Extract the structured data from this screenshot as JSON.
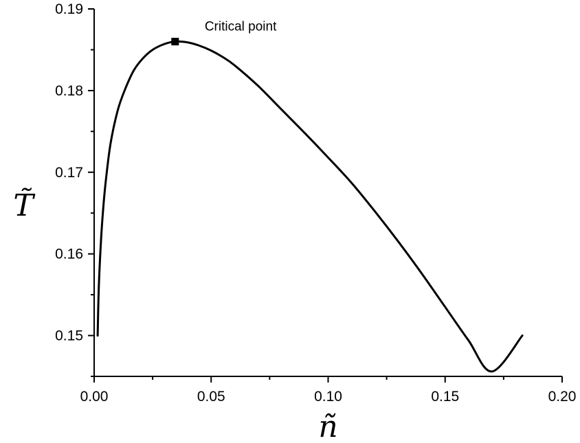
{
  "chart_data": {
    "type": "line",
    "title": "",
    "xlabel": "ñ",
    "ylabel": "T̃",
    "xlim": [
      0.0,
      0.2
    ],
    "ylim": [
      0.145,
      0.19
    ],
    "xticks": [
      0.0,
      0.05,
      0.1,
      0.15,
      0.2
    ],
    "xtick_labels": [
      "0.00",
      "0.05",
      "0.10",
      "0.15",
      "0.20"
    ],
    "yticks": [
      0.15,
      0.16,
      0.17,
      0.18,
      0.19
    ],
    "ytick_labels": [
      "0.15",
      "0.16",
      "0.17",
      "0.18",
      "0.19"
    ],
    "grid": false,
    "series": [
      {
        "color": "#000000",
        "x": [
          0.0015,
          0.002,
          0.003,
          0.004,
          0.005,
          0.007,
          0.01,
          0.013,
          0.017,
          0.021,
          0.025,
          0.03,
          0.0346,
          0.04,
          0.045,
          0.05,
          0.055,
          0.06,
          0.07,
          0.08,
          0.09,
          0.1,
          0.11,
          0.12,
          0.13,
          0.14,
          0.15,
          0.16,
          0.17,
          0.183
        ],
        "y": [
          0.15,
          0.156,
          0.162,
          0.166,
          0.169,
          0.1735,
          0.1775,
          0.18,
          0.1825,
          0.184,
          0.185,
          0.1857,
          0.186,
          0.1859,
          0.1855,
          0.1849,
          0.1841,
          0.1831,
          0.1806,
          0.1777,
          0.1748,
          0.1718,
          0.1687,
          0.1652,
          0.1615,
          0.1576,
          0.1535,
          0.1494,
          0.1456,
          0.15
        ]
      }
    ],
    "annotations": [
      {
        "text": "Critical point",
        "x": 0.0346,
        "y": 0.186
      }
    ]
  }
}
